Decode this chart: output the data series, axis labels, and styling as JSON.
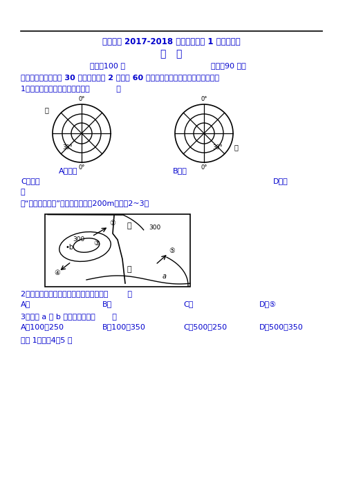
{
  "title_line1": "仓颍中学 2017-2018 学年毕业班第 1 次质量检测",
  "title_line2": "地   理",
  "score_time_left": "总分：100 分",
  "score_time_right": "时间：90 分钟",
  "section1_title": "一、单项选择题（共 30 道小题，每题 2 分，共 60 分。答案必须填涂写在答题卡内。）",
  "q1_text": "1、读下图，判断甲地在乙地的（           ）",
  "q1_A": "A、东南",
  "q1_B": "B、西",
  "q1_C": "C、正南",
  "q1_D": "D、正",
  "q1_D2": "北",
  "contour_intro": "读“等高线地形图”，图中等高距为200m，完成2~3题",
  "q2_text": "2、图中笭头正确表示河流集水方向的是（        ）",
  "q2_A": "A、",
  "q2_B": "B、",
  "q2_C": "C、",
  "q2_D": "D、⑤",
  "q3_text": "3、图中 a 和 b 的数值可能是（       ）",
  "q3_A": "A、100、250",
  "q3_B": "B、100、350",
  "q3_C": "C、500、250",
  "q3_D": "D、500、350",
  "q4_intro": "读图 1，完成4～5 题",
  "text_color": "#0000CD",
  "black_color": "#000000",
  "bg_color": "#FFFFFF"
}
